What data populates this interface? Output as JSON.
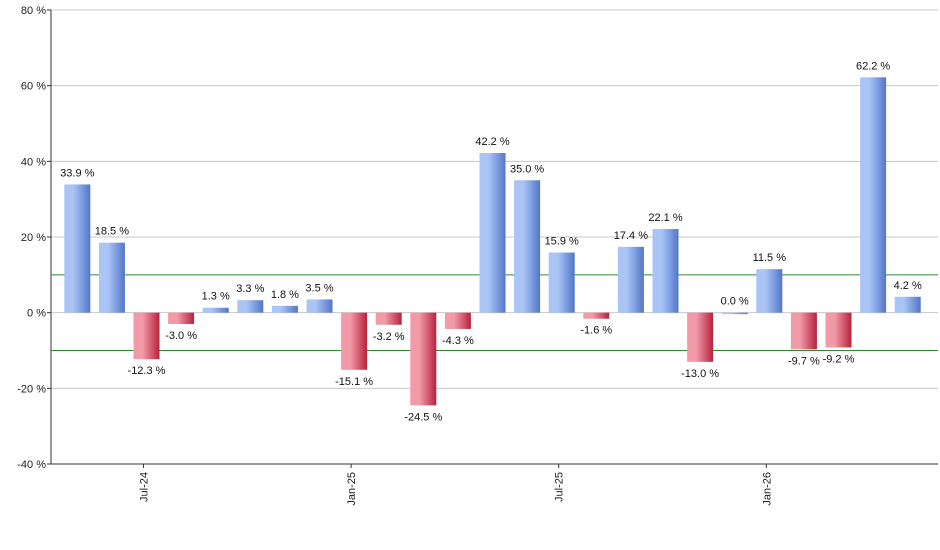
{
  "chart_data": {
    "type": "bar",
    "title": "",
    "xlabel": "",
    "ylabel": "",
    "ylim": [
      -40,
      80
    ],
    "y_ticks": [
      -40,
      -20,
      0,
      20,
      40,
      60,
      80
    ],
    "y_tick_suffix": " %",
    "grid": true,
    "x_tick_labels": [
      "Jul-24",
      "Jan-25",
      "Jul-25",
      "Jan-26"
    ],
    "x_tick_positions": [
      2,
      8,
      14,
      20
    ],
    "values": [
      33.9,
      18.5,
      -12.3,
      -3.0,
      1.3,
      3.3,
      1.8,
      3.5,
      -15.1,
      -3.2,
      -24.5,
      -4.3,
      42.2,
      35.0,
      15.9,
      -1.6,
      17.4,
      22.1,
      -13.0,
      0.0,
      11.5,
      -9.7,
      -9.2,
      62.2,
      4.2
    ],
    "data_labels": [
      "33.9 %",
      "18.5 %",
      "-12.3 %",
      "-3.0 %",
      "1.3 %",
      "3.3 %",
      "1.8 %",
      "3.5 %",
      "-15.1 %",
      "-3.2 %",
      "-24.5 %",
      "-4.3 %",
      "42.2 %",
      "35.0 %",
      "15.9 %",
      "-1.6 %",
      "17.4 %",
      "22.1 %",
      "-13.0 %",
      "0.0 %",
      "11.5 %",
      "-9.7 %",
      "-9.2 %",
      "62.2 %",
      "4.2 %"
    ],
    "reference_lines": [
      10,
      -10
    ],
    "colors": {
      "positive_light": "#a9c4f5",
      "positive_dark": "#5276c9",
      "negative_light": "#f29aa8",
      "negative_dark": "#b8213d",
      "reference_line": "#2e8b2e",
      "grid": "#c8c8c8",
      "axis": "#333333"
    }
  }
}
